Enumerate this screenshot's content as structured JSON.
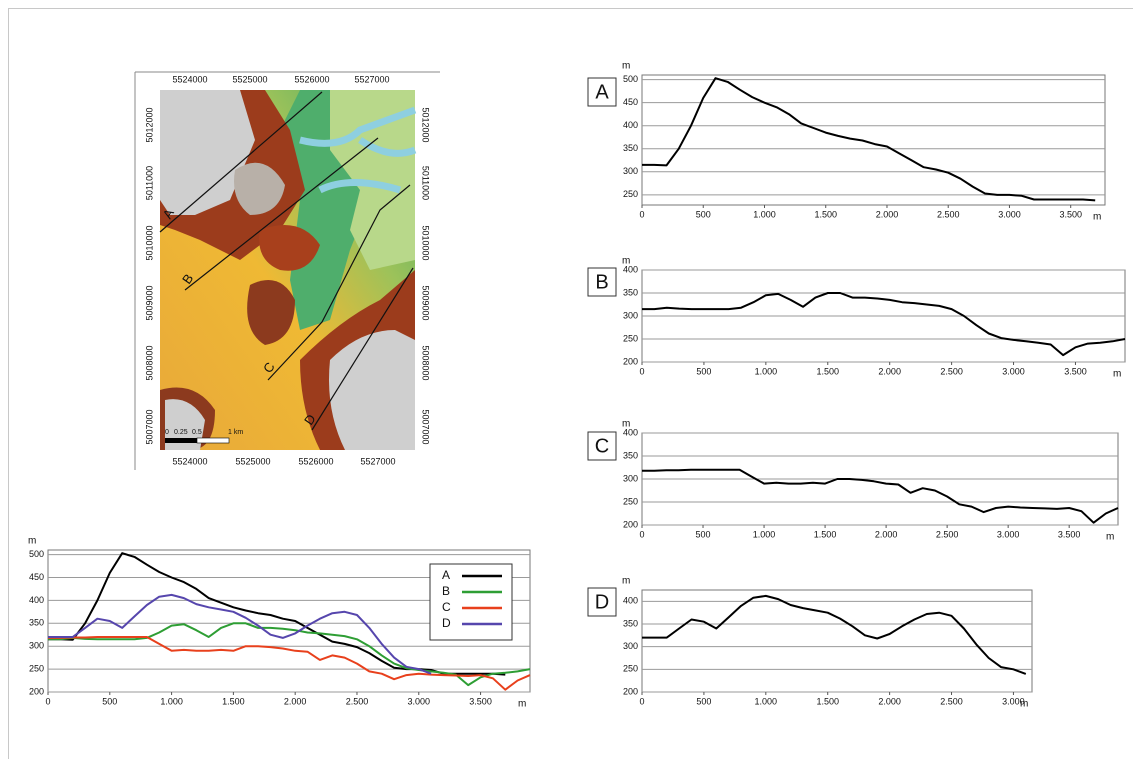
{
  "chart_data": [
    {
      "type": "line",
      "y_label": "m",
      "x_label": "m",
      "x": [
        0,
        100,
        200,
        300,
        400,
        500,
        600,
        700,
        800,
        900,
        1000,
        1100,
        1200,
        1300,
        1400,
        1500,
        1600,
        1700,
        1800,
        1900,
        2000,
        2100,
        2200,
        2300,
        2400,
        2500,
        2600,
        2700,
        2800,
        2900,
        3000,
        3100,
        3200,
        3300,
        3400,
        3500,
        3600,
        3700
      ],
      "series": [
        {
          "name": "A",
          "color": "#000000",
          "values": [
            315,
            315,
            314,
            350,
            400,
            460,
            503,
            495,
            478,
            462,
            450,
            440,
            425,
            405,
            395,
            385,
            378,
            372,
            368,
            360,
            355,
            340,
            325,
            310,
            305,
            298,
            285,
            268,
            253,
            250,
            250,
            248,
            240,
            240,
            240,
            240,
            240,
            238
          ]
        }
      ],
      "xlim": [
        0,
        3780
      ],
      "ylim": [
        228,
        510
      ],
      "xticks": [
        0,
        500,
        {
          "value": 1000,
          "label": "1.000"
        },
        {
          "value": 1500,
          "label": "1.500"
        },
        {
          "value": 2000,
          "label": "2.000"
        },
        {
          "value": 2500,
          "label": "2.500"
        },
        {
          "value": 3000,
          "label": "3.000"
        },
        {
          "value": 3500,
          "label": "3.500"
        }
      ],
      "yticks": [
        250,
        300,
        350,
        400,
        450,
        500
      ],
      "grid": true
    },
    {
      "type": "line",
      "y_label": "m",
      "x_label": "m",
      "x": [
        0,
        100,
        200,
        300,
        400,
        500,
        600,
        700,
        800,
        900,
        1000,
        1100,
        1200,
        1300,
        1400,
        1500,
        1600,
        1700,
        1800,
        1900,
        2000,
        2100,
        2200,
        2300,
        2400,
        2500,
        2600,
        2700,
        2800,
        2900,
        3000,
        3100,
        3200,
        3300,
        3400,
        3500,
        3600,
        3700,
        3800,
        3900
      ],
      "series": [
        {
          "name": "B",
          "color": "#000000",
          "values": [
            315,
            315,
            318,
            316,
            315,
            315,
            315,
            315,
            318,
            330,
            345,
            348,
            335,
            320,
            340,
            350,
            350,
            340,
            340,
            338,
            335,
            330,
            328,
            325,
            322,
            315,
            300,
            280,
            262,
            252,
            248,
            245,
            242,
            238,
            215,
            232,
            240,
            242,
            245,
            250
          ]
        }
      ],
      "xlim": [
        0,
        3900
      ],
      "ylim": [
        200,
        400
      ],
      "xticks": [
        0,
        500,
        {
          "value": 1000,
          "label": "1.000"
        },
        {
          "value": 1500,
          "label": "1.500"
        },
        {
          "value": 2000,
          "label": "2.000"
        },
        {
          "value": 2500,
          "label": "2.500"
        },
        {
          "value": 3000,
          "label": "3.000"
        },
        {
          "value": 3500,
          "label": "3.500"
        }
      ],
      "yticks": [
        200,
        250,
        300,
        350,
        400
      ],
      "grid": true
    },
    {
      "type": "line",
      "y_label": "m",
      "x_label": "m",
      "x": [
        0,
        100,
        200,
        300,
        400,
        500,
        600,
        700,
        800,
        900,
        1000,
        1100,
        1200,
        1300,
        1400,
        1500,
        1600,
        1700,
        1800,
        1900,
        2000,
        2100,
        2200,
        2300,
        2400,
        2500,
        2600,
        2700,
        2800,
        2900,
        3000,
        3100,
        3200,
        3300,
        3400,
        3500,
        3600,
        3700,
        3800,
        3900
      ],
      "series": [
        {
          "name": "C",
          "color": "#000000",
          "values": [
            318,
            318,
            319,
            319,
            320,
            320,
            320,
            320,
            320,
            305,
            290,
            292,
            290,
            290,
            292,
            290,
            300,
            300,
            298,
            295,
            290,
            288,
            270,
            280,
            275,
            262,
            245,
            240,
            228,
            237,
            240,
            238,
            237,
            236,
            235,
            237,
            230,
            205,
            225,
            237
          ]
        }
      ],
      "xlim": [
        0,
        3900
      ],
      "ylim": [
        200,
        400
      ],
      "xticks": [
        0,
        500,
        {
          "value": 1000,
          "label": "1.000"
        },
        {
          "value": 1500,
          "label": "1.500"
        },
        {
          "value": 2000,
          "label": "2.000"
        },
        {
          "value": 2500,
          "label": "2.500"
        },
        {
          "value": 3000,
          "label": "3.000"
        },
        {
          "value": 3500,
          "label": "3.500"
        }
      ],
      "yticks": [
        200,
        250,
        300,
        350,
        400
      ],
      "grid": true
    },
    {
      "type": "line",
      "y_label": "m",
      "x_label": "m",
      "x": [
        0,
        100,
        200,
        300,
        400,
        500,
        600,
        700,
        800,
        900,
        1000,
        1100,
        1200,
        1300,
        1400,
        1500,
        1600,
        1700,
        1800,
        1900,
        2000,
        2100,
        2200,
        2300,
        2400,
        2500,
        2600,
        2700,
        2800,
        2900,
        3000,
        3100
      ],
      "series": [
        {
          "name": "D",
          "color": "#000000",
          "values": [
            320,
            320,
            320,
            340,
            360,
            355,
            340,
            365,
            390,
            408,
            412,
            405,
            392,
            385,
            380,
            375,
            362,
            345,
            325,
            318,
            328,
            345,
            360,
            372,
            375,
            368,
            340,
            305,
            275,
            255,
            250,
            240
          ]
        }
      ],
      "xlim": [
        0,
        3150
      ],
      "ylim": [
        200,
        425
      ],
      "xticks": [
        0,
        500,
        {
          "value": 1000,
          "label": "1.000"
        },
        {
          "value": 1500,
          "label": "1.500"
        },
        {
          "value": 2000,
          "label": "2.000"
        },
        {
          "value": 2500,
          "label": "2.500"
        },
        {
          "value": 3000,
          "label": "3.000"
        }
      ],
      "yticks": [
        200,
        250,
        300,
        350,
        400
      ],
      "grid": true
    },
    {
      "type": "line",
      "y_label": "m",
      "x_label": "m",
      "legend": "upper right",
      "x": [
        0,
        100,
        200,
        300,
        400,
        500,
        600,
        700,
        800,
        900,
        1000,
        1100,
        1200,
        1300,
        1400,
        1500,
        1600,
        1700,
        1800,
        1900,
        2000,
        2100,
        2200,
        2300,
        2400,
        2500,
        2600,
        2700,
        2800,
        2900,
        3000,
        3100,
        3200,
        3300,
        3400,
        3500,
        3600,
        3700,
        3800,
        3900
      ],
      "series": [
        {
          "name": "A",
          "color": "#000000",
          "values": [
            315,
            315,
            314,
            350,
            400,
            460,
            503,
            495,
            478,
            462,
            450,
            440,
            425,
            405,
            395,
            385,
            378,
            372,
            368,
            360,
            355,
            340,
            325,
            310,
            305,
            298,
            285,
            268,
            253,
            250,
            250,
            248,
            240,
            240,
            240,
            240,
            240,
            238,
            null,
            null
          ]
        },
        {
          "name": "B",
          "color": "#2e9e34",
          "values": [
            315,
            315,
            318,
            316,
            315,
            315,
            315,
            315,
            318,
            330,
            345,
            348,
            335,
            320,
            340,
            350,
            350,
            340,
            340,
            338,
            335,
            330,
            328,
            325,
            322,
            315,
            300,
            280,
            262,
            252,
            248,
            245,
            242,
            238,
            215,
            232,
            240,
            242,
            245,
            250
          ]
        },
        {
          "name": "C",
          "color": "#e8401c",
          "values": [
            318,
            318,
            319,
            319,
            320,
            320,
            320,
            320,
            320,
            305,
            290,
            292,
            290,
            290,
            292,
            290,
            300,
            300,
            298,
            295,
            290,
            288,
            270,
            280,
            275,
            262,
            245,
            240,
            228,
            237,
            240,
            238,
            237,
            236,
            235,
            237,
            230,
            205,
            225,
            237
          ]
        },
        {
          "name": "D",
          "color": "#5646ad",
          "values": [
            320,
            320,
            320,
            340,
            360,
            355,
            340,
            365,
            390,
            408,
            412,
            405,
            392,
            385,
            380,
            375,
            362,
            345,
            325,
            318,
            328,
            345,
            360,
            372,
            375,
            368,
            340,
            305,
            275,
            255,
            250,
            240,
            null,
            null,
            null,
            null,
            null,
            null,
            null,
            null
          ]
        }
      ],
      "xlim": [
        0,
        3900
      ],
      "ylim": [
        200,
        510
      ],
      "xticks": [
        0,
        500,
        {
          "value": 1000,
          "label": "1.000"
        },
        {
          "value": 1500,
          "label": "1.500"
        },
        {
          "value": 2000,
          "label": "2.000"
        },
        {
          "value": 2500,
          "label": "2.500"
        },
        {
          "value": 3000,
          "label": "3.000"
        },
        {
          "value": 3500,
          "label": "3.500"
        }
      ],
      "yticks": [
        200,
        250,
        300,
        350,
        400,
        450,
        500
      ],
      "grid": true
    }
  ],
  "map": {
    "x_labels": [
      "5524000",
      "5525000",
      "5526000",
      "5527000"
    ],
    "y_labels": [
      "5012000",
      "5011000",
      "5010000",
      "5009000",
      "5008000",
      "5007000"
    ],
    "profile_labels": [
      "A",
      "B",
      "C",
      "D"
    ],
    "scale_labels": [
      "0",
      "0.25",
      "0.5",
      "1 km"
    ]
  }
}
